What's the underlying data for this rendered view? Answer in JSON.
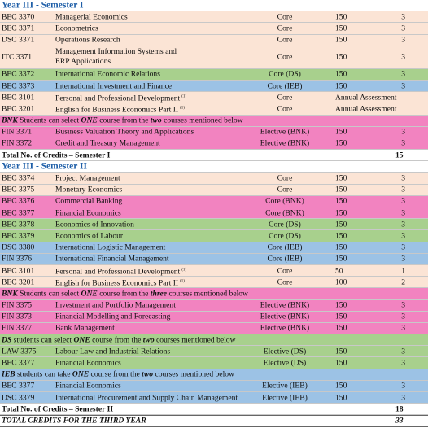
{
  "sections": [
    {
      "title": "Year III - Semester I",
      "rows": [
        {
          "code": "BEC 3370",
          "title": "Managerial Economics",
          "type": "Core",
          "hours": "150",
          "credits": "3",
          "color": "#fbe4d5"
        },
        {
          "code": "BEC 3371",
          "title": "Econometrics",
          "type": "Core",
          "hours": "150",
          "credits": "3",
          "color": "#fbe4d5"
        },
        {
          "code": "DSC 3371",
          "title": "Operations Research",
          "type": "Core",
          "hours": "150",
          "credits": "3",
          "color": "#fbe4d5"
        },
        {
          "code": "ITC 3371",
          "lines": [
            "Management Information Systems and",
            "ERP Applications"
          ],
          "type": "Core",
          "hours": "150",
          "credits": "3",
          "color": "#fbe4d5"
        },
        {
          "code": "BEC 3372",
          "title": "International Economic Relations",
          "type": "Core (DS)",
          "hours": "150",
          "credits": "3",
          "color": "#a8d08d"
        },
        {
          "code": "BEC 3373",
          "title": "International Investment and Finance",
          "type": "Core (IEB)",
          "hours": "150",
          "credits": "3",
          "color": "#9cc2e5"
        },
        {
          "code": "BEC 3101",
          "title": "Personal and Professional Development",
          "note": "(1)",
          "type": "Core",
          "assessment": "Annual Assessment",
          "color": "#fbe4d5"
        },
        {
          "code": "BEC 3201",
          "title": "English for Business Economics Part II",
          "note": "(1)",
          "type": "Core",
          "assessment": "Annual Assessment",
          "color": "#fbe4d5"
        },
        {
          "parts": [
            "BNK",
            " Students can select ",
            "ONE",
            " course from the ",
            "two",
            " courses mentioned below"
          ],
          "color": "#f283c0"
        },
        {
          "code": "FIN 3371",
          "title": "Business Valuation Theory and Applications",
          "type": "Elective (BNK)",
          "hours": "150",
          "credits": "3",
          "color": "#f283c0"
        },
        {
          "code": "FIN 3372",
          "title": "Credit and Treasury Management",
          "type": "Elective (BNK)",
          "hours": "150",
          "credits": "3",
          "color": "#f283c0"
        }
      ],
      "total": {
        "label": "Total No. of Credits – Semester I",
        "value": "15"
      }
    },
    {
      "title": "Year III - Semester II",
      "rows": [
        {
          "code": "BEC 3374",
          "title": "Project Management",
          "type": "Core",
          "hours": "150",
          "credits": "3",
          "color": "#fbe4d5"
        },
        {
          "code": "BEC 3375",
          "title": "Monetary Economics",
          "type": "Core",
          "hours": "150",
          "credits": "3",
          "color": "#fbe4d5"
        },
        {
          "code": "BEC 3376",
          "title": "Commercial Banking",
          "type": "Core (BNK)",
          "hours": "150",
          "credits": "3",
          "color": "#f283c0"
        },
        {
          "code": "BEC 3377",
          "title": "Financial Economics",
          "type": "Core (BNK)",
          "hours": "150",
          "credits": "3",
          "color": "#f283c0"
        },
        {
          "code": "BEC 3378",
          "title": "Economics of Innovation",
          "type": "Core (DS)",
          "hours": "150",
          "credits": "3",
          "color": "#a8d08d"
        },
        {
          "code": "BEC 3379",
          "title": "Economics of Labour",
          "type": "Core (DS)",
          "hours": "150",
          "credits": "3",
          "color": "#a8d08d"
        },
        {
          "code": "DSC 3380",
          "title": "International Logistic Management",
          "type": "Core (IEB)",
          "hours": "150",
          "credits": "3",
          "color": "#9cc2e5"
        },
        {
          "code": "FIN 3376",
          "title": "International Financial Management",
          "type": "Core (IEB)",
          "hours": "150",
          "credits": "3",
          "color": "#9cc2e5"
        },
        {
          "code": "BEC 3101",
          "title": "Personal and Professional Development",
          "note": "(1)",
          "type": "Core",
          "hours": "50",
          "credits": "1",
          "color": "#fbe4d5"
        },
        {
          "code": "BEC 3201",
          "title": "English for Business Economics Part II",
          "note": "(1)",
          "type": "Core",
          "hours": "100",
          "credits": "2",
          "color": "#fbe4d5"
        },
        {
          "parts": [
            "BNK",
            " Students can select ",
            "ONE",
            " course from the ",
            "three",
            " courses mentioned below"
          ],
          "color": "#f283c0"
        },
        {
          "code": "FIN 3375",
          "title": "Investment and Portfolio Management",
          "type": "Elective (BNK)",
          "hours": "150",
          "credits": "3",
          "color": "#f283c0"
        },
        {
          "code": "FIN 3373",
          "title": "Financial Modelling and Forecasting",
          "type": "Elective (BNK)",
          "hours": "150",
          "credits": "3",
          "color": "#f283c0"
        },
        {
          "code": "FIN 3377",
          "title": "Bank Management",
          "type": "Elective (BNK)",
          "hours": "150",
          "credits": "3",
          "color": "#f283c0"
        },
        {
          "parts": [
            "DS",
            " students can select ",
            "ONE",
            " course from the ",
            "two",
            " courses mentioned below"
          ],
          "color": "#a8d08d"
        },
        {
          "code": "LAW 3375",
          "title": "Labour Law and Industrial Relations",
          "type": "Elective (DS)",
          "hours": "150",
          "credits": "3",
          "color": "#a8d08d"
        },
        {
          "code": "BEC 3377",
          "title": "Financial Economics",
          "type": "Elective (DS)",
          "hours": "150",
          "credits": "3",
          "color": "#a8d08d"
        },
        {
          "parts": [
            "IEB",
            " students can take ",
            "ONE",
            " course from the ",
            "two",
            " courses mentioned below"
          ],
          "color": "#9cc2e5"
        },
        {
          "code": "BEC 3377",
          "title": "Financial Economics",
          "type": "Elective (IEB)",
          "hours": "150",
          "credits": "3",
          "color": "#9cc2e5"
        },
        {
          "code": "DSC 3379",
          "title": "International Procurement and Supply Chain Management",
          "type": "Elective (IEB)",
          "hours": "150",
          "credits": "3",
          "color": "#9cc2e5"
        }
      ],
      "total": {
        "label": "Total No. of Credits – Semester II",
        "value": "18"
      }
    }
  ],
  "grand_total": {
    "label": "TOTAL CREDITS FOR THE THIRD YEAR",
    "value": "33"
  }
}
